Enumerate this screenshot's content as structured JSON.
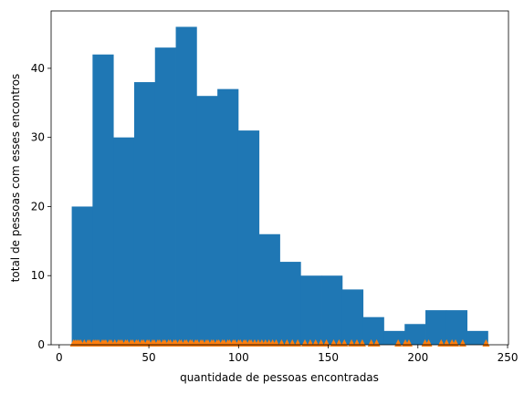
{
  "chart_data": {
    "type": "bar",
    "title": "",
    "xlabel": "quantidade de pessoas encontradas",
    "ylabel": "total de pessoas com esses encontros",
    "xlim": [
      -4.5,
      250.5
    ],
    "ylim": [
      0,
      48.3
    ],
    "xticks": [
      0,
      50,
      100,
      150,
      200,
      250
    ],
    "yticks": [
      0,
      10,
      20,
      30,
      40
    ],
    "grid": false,
    "bins": [
      {
        "x0": 7.0,
        "x1": 18.6,
        "count": 20
      },
      {
        "x0": 18.6,
        "x1": 30.2,
        "count": 42
      },
      {
        "x0": 30.2,
        "x1": 41.8,
        "count": 30
      },
      {
        "x0": 41.8,
        "x1": 53.4,
        "count": 38
      },
      {
        "x0": 53.4,
        "x1": 65.0,
        "count": 43
      },
      {
        "x0": 65.0,
        "x1": 76.6,
        "count": 46
      },
      {
        "x0": 76.6,
        "x1": 88.2,
        "count": 36
      },
      {
        "x0": 88.2,
        "x1": 99.8,
        "count": 37
      },
      {
        "x0": 99.8,
        "x1": 111.4,
        "count": 31
      },
      {
        "x0": 111.4,
        "x1": 123.0,
        "count": 16
      },
      {
        "x0": 123.0,
        "x1": 134.6,
        "count": 12
      },
      {
        "x0": 134.6,
        "x1": 146.2,
        "count": 10
      },
      {
        "x0": 146.2,
        "x1": 157.8,
        "count": 10
      },
      {
        "x0": 157.8,
        "x1": 169.4,
        "count": 8
      },
      {
        "x0": 169.4,
        "x1": 181.0,
        "count": 4
      },
      {
        "x0": 181.0,
        "x1": 192.6,
        "count": 2
      },
      {
        "x0": 192.6,
        "x1": 204.2,
        "count": 3
      },
      {
        "x0": 204.2,
        "x1": 215.8,
        "count": 5
      },
      {
        "x0": 215.8,
        "x1": 227.4,
        "count": 5
      },
      {
        "x0": 227.4,
        "x1": 239.0,
        "count": 2
      }
    ],
    "rug_points": [
      8,
      9,
      10,
      11,
      12,
      14,
      16,
      17,
      19,
      20,
      21,
      22,
      24,
      25,
      26,
      28,
      29,
      31,
      33,
      34,
      35,
      37,
      38,
      40,
      41,
      43,
      44,
      46,
      47,
      49,
      50,
      52,
      53,
      55,
      56,
      58,
      59,
      61,
      62,
      64,
      65,
      67,
      68,
      70,
      71,
      73,
      74,
      76,
      77,
      79,
      80,
      82,
      83,
      85,
      86,
      88,
      89,
      91,
      92,
      94,
      95,
      97,
      98,
      100,
      101,
      103,
      104,
      106,
      107,
      109,
      111,
      113,
      115,
      117,
      119,
      121,
      124,
      127,
      130,
      133,
      137,
      140,
      143,
      146,
      149,
      153,
      156,
      159,
      163,
      166,
      169,
      174,
      177,
      189,
      193,
      195,
      204,
      206,
      213,
      216,
      219,
      221,
      225,
      238
    ],
    "colors": {
      "bars": "#1f77b4",
      "rug": "#ff7f0e"
    }
  }
}
